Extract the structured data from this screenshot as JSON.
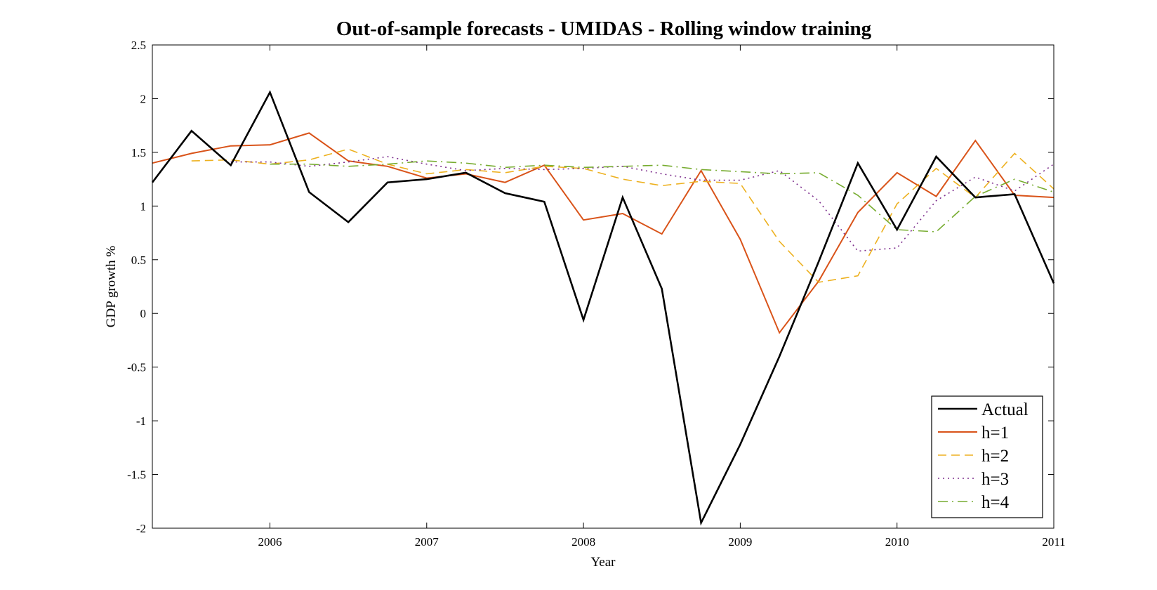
{
  "chart_data": {
    "type": "line",
    "title": "Out-of-sample forecasts - UMIDAS - Rolling window training",
    "xlabel": "Year",
    "ylabel": "GDP growth %",
    "xlim": [
      2005.25,
      2011
    ],
    "ylim": [
      -2,
      2.5
    ],
    "xticks": [
      2006,
      2007,
      2008,
      2009,
      2010,
      2011
    ],
    "xtick_labels": [
      "2006",
      "2007",
      "2008",
      "2009",
      "2010",
      "2011"
    ],
    "yticks": [
      -2,
      -1.5,
      -1,
      -0.5,
      0,
      0.5,
      1,
      1.5,
      2,
      2.5
    ],
    "ytick_labels": [
      "-2",
      "-1.5",
      "-1",
      "-0.5",
      "0",
      "0.5",
      "1",
      "1.5",
      "2",
      "2.5"
    ],
    "grid": false,
    "legend_position": "bottom-right",
    "x": [
      2005.25,
      2005.5,
      2005.75,
      2006,
      2006.25,
      2006.5,
      2006.75,
      2007,
      2007.25,
      2007.5,
      2007.75,
      2008,
      2008.25,
      2008.5,
      2008.75,
      2009,
      2009.25,
      2009.5,
      2009.75,
      2010,
      2010.25,
      2010.5,
      2010.75,
      2011
    ],
    "series": [
      {
        "name": "Actual",
        "color": "#000000",
        "dash": "solid",
        "width": 2.6,
        "values": [
          1.22,
          1.7,
          1.38,
          2.06,
          1.13,
          0.85,
          1.22,
          1.25,
          1.31,
          1.12,
          1.04,
          -0.06,
          1.08,
          0.23,
          -1.95,
          -1.22,
          -0.4,
          0.48,
          1.4,
          0.78,
          1.46,
          1.08,
          1.11,
          0.28
        ]
      },
      {
        "name": "h=1",
        "color": "#D95319",
        "dash": "solid",
        "width": 2,
        "values": [
          1.4,
          1.49,
          1.56,
          1.57,
          1.68,
          1.42,
          1.37,
          1.26,
          1.3,
          1.22,
          1.38,
          0.87,
          0.93,
          0.74,
          1.33,
          0.69,
          -0.18,
          0.3,
          0.94,
          1.31,
          1.09,
          1.61,
          1.1,
          1.08
        ]
      },
      {
        "name": "h=2",
        "color": "#EDB120",
        "dash": "dashed",
        "width": 1.6,
        "values": [
          null,
          1.42,
          1.43,
          1.39,
          1.43,
          1.53,
          1.39,
          1.3,
          1.34,
          1.31,
          1.37,
          1.35,
          1.25,
          1.19,
          1.23,
          1.21,
          0.67,
          0.29,
          0.35,
          1.02,
          1.35,
          1.08,
          1.49,
          1.16
        ]
      },
      {
        "name": "h=3",
        "color": "#7E2F8E",
        "dash": "dotted",
        "width": 1.6,
        "values": [
          null,
          null,
          1.41,
          1.41,
          1.37,
          1.41,
          1.46,
          1.39,
          1.33,
          1.35,
          1.34,
          1.35,
          1.37,
          1.3,
          1.24,
          1.24,
          1.33,
          1.05,
          0.58,
          0.61,
          1.05,
          1.27,
          1.14,
          1.39
        ]
      },
      {
        "name": "h=4",
        "color": "#77AC30",
        "dash": "dashdot",
        "width": 1.6,
        "values": [
          null,
          null,
          null,
          1.39,
          1.39,
          1.37,
          1.39,
          1.42,
          1.4,
          1.36,
          1.38,
          1.36,
          1.37,
          1.38,
          1.34,
          1.32,
          1.3,
          1.31,
          1.1,
          0.78,
          0.76,
          1.09,
          1.25,
          1.13
        ]
      }
    ]
  }
}
